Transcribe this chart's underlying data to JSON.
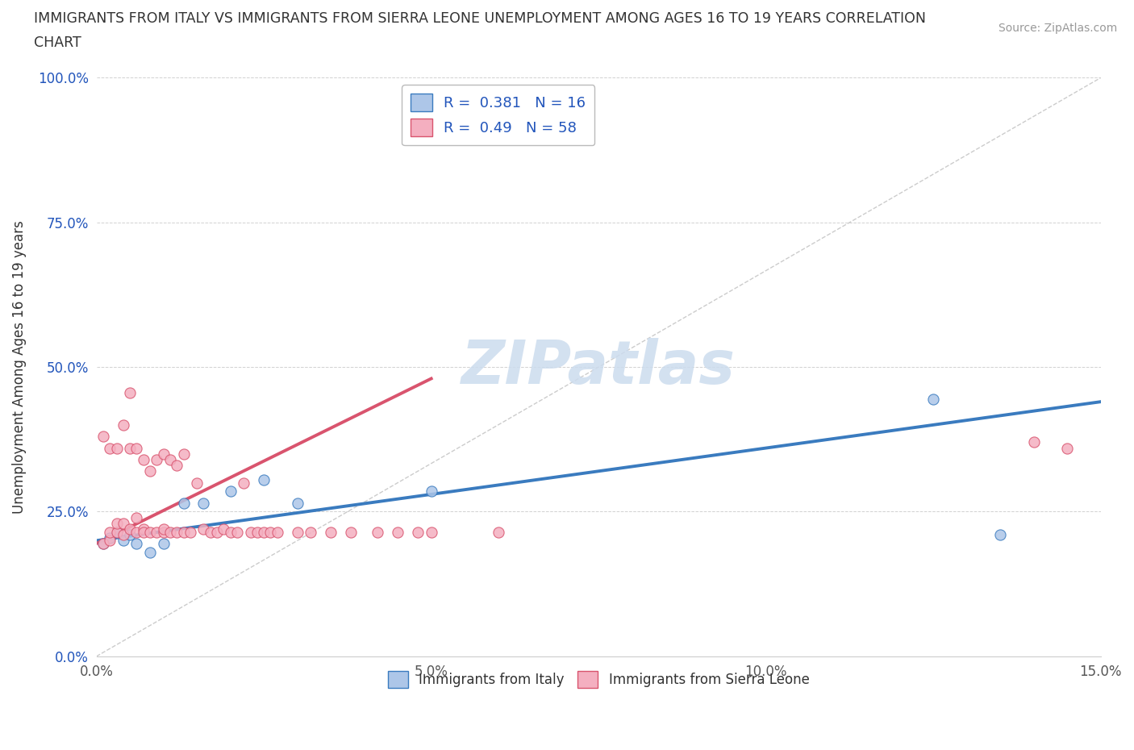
{
  "title_line1": "IMMIGRANTS FROM ITALY VS IMMIGRANTS FROM SIERRA LEONE UNEMPLOYMENT AMONG AGES 16 TO 19 YEARS CORRELATION",
  "title_line2": "CHART",
  "source": "Source: ZipAtlas.com",
  "ylabel": "Unemployment Among Ages 16 to 19 years",
  "xlim": [
    0,
    0.15
  ],
  "ylim": [
    0,
    1.0
  ],
  "xticks": [
    0.0,
    0.05,
    0.1,
    0.15
  ],
  "xticklabels": [
    "0.0%",
    "5.0%",
    "10.0%",
    "15.0%"
  ],
  "yticks": [
    0.0,
    0.25,
    0.5,
    0.75,
    1.0
  ],
  "yticklabels": [
    "0.0%",
    "25.0%",
    "50.0%",
    "75.0%",
    "100.0%"
  ],
  "R_italy": 0.381,
  "N_italy": 16,
  "R_sierra": 0.49,
  "N_sierra": 58,
  "italy_color": "#adc6e8",
  "sierra_color": "#f4afc0",
  "italy_line_color": "#3a7bbf",
  "sierra_line_color": "#d9546e",
  "diag_color": "#cccccc",
  "legend_text_color": "#2255bb",
  "watermark_color": "#ccdcee",
  "italy_x": [
    0.001,
    0.002,
    0.003,
    0.004,
    0.005,
    0.006,
    0.008,
    0.01,
    0.013,
    0.016,
    0.02,
    0.025,
    0.03,
    0.05,
    0.125,
    0.135
  ],
  "italy_y": [
    0.195,
    0.205,
    0.215,
    0.2,
    0.21,
    0.195,
    0.18,
    0.195,
    0.265,
    0.265,
    0.285,
    0.305,
    0.265,
    0.285,
    0.445,
    0.21
  ],
  "sierra_x": [
    0.001,
    0.001,
    0.002,
    0.002,
    0.002,
    0.003,
    0.003,
    0.003,
    0.004,
    0.004,
    0.004,
    0.005,
    0.005,
    0.005,
    0.006,
    0.006,
    0.006,
    0.007,
    0.007,
    0.007,
    0.008,
    0.008,
    0.009,
    0.009,
    0.01,
    0.01,
    0.01,
    0.011,
    0.011,
    0.012,
    0.012,
    0.013,
    0.013,
    0.014,
    0.015,
    0.016,
    0.017,
    0.018,
    0.019,
    0.02,
    0.021,
    0.022,
    0.023,
    0.024,
    0.025,
    0.026,
    0.027,
    0.03,
    0.032,
    0.035,
    0.038,
    0.042,
    0.045,
    0.048,
    0.05,
    0.06,
    0.14,
    0.145
  ],
  "sierra_y": [
    0.195,
    0.38,
    0.2,
    0.215,
    0.36,
    0.215,
    0.23,
    0.36,
    0.21,
    0.23,
    0.4,
    0.22,
    0.36,
    0.455,
    0.24,
    0.215,
    0.36,
    0.22,
    0.215,
    0.34,
    0.215,
    0.32,
    0.215,
    0.34,
    0.215,
    0.22,
    0.35,
    0.215,
    0.34,
    0.215,
    0.33,
    0.215,
    0.35,
    0.215,
    0.3,
    0.22,
    0.215,
    0.215,
    0.22,
    0.215,
    0.215,
    0.3,
    0.215,
    0.215,
    0.215,
    0.215,
    0.215,
    0.215,
    0.215,
    0.215,
    0.215,
    0.215,
    0.215,
    0.215,
    0.215,
    0.215,
    0.37,
    0.36
  ],
  "italy_line_x": [
    0.0,
    0.15
  ],
  "italy_line_y": [
    0.2,
    0.44
  ],
  "sierra_line_x": [
    0.0,
    0.05
  ],
  "sierra_line_y": [
    0.195,
    0.48
  ]
}
